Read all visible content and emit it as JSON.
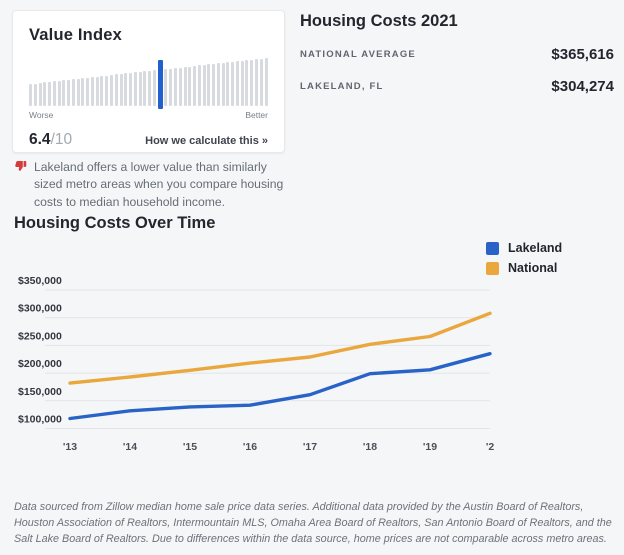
{
  "value_index_card": {
    "title": "Value Index",
    "score": "6.4",
    "score_max": "/10",
    "worse_label": "Worse",
    "better_label": "Better",
    "calculate_link": "How we calculate this »",
    "gauge": {
      "bar_count": 50,
      "highlight_index": 27,
      "bar_color": "#d7dade",
      "highlight_color": "#2260d0"
    }
  },
  "housing_costs": {
    "title": "Housing Costs 2021",
    "rows": [
      {
        "label": "NATIONAL AVERAGE",
        "value": "$365,616"
      },
      {
        "label": "LAKELAND, FL",
        "value": "$304,274"
      }
    ]
  },
  "note": {
    "icon": "thumbs-down-icon",
    "icon_color": "#d63b3b",
    "text": "Lakeland offers a lower value than similarly sized metro areas when you compare housing costs to median household income."
  },
  "chart_data": {
    "type": "line",
    "title": "Housing Costs Over Time",
    "x_tick_labels": [
      "'13",
      "'14",
      "'15",
      "'16",
      "'17",
      "'18",
      "'19",
      "'2"
    ],
    "years": [
      2013,
      2014,
      2015,
      2016,
      2017,
      2018,
      2019,
      2020
    ],
    "series": [
      {
        "name": "Lakeland",
        "color": "#2a63c8",
        "values": [
          118000,
          132000,
          139000,
          142000,
          161000,
          199000,
          206000,
          235000
        ]
      },
      {
        "name": "National",
        "color": "#eaa73d",
        "values": [
          182000,
          193000,
          205000,
          218000,
          229000,
          252000,
          266000,
          308000
        ]
      }
    ],
    "y_ticks": [
      {
        "label": "$350,000",
        "value": 350000
      },
      {
        "label": "$300,000",
        "value": 300000
      },
      {
        "label": "$250,000",
        "value": 250000
      },
      {
        "label": "$200,000",
        "value": 200000
      },
      {
        "label": "$150,000",
        "value": 150000
      },
      {
        "label": "$100,000",
        "value": 100000
      }
    ],
    "ylim": [
      100000,
      350000
    ],
    "xlabel": "",
    "ylabel": "",
    "grid": true,
    "legend_position": "top-right"
  },
  "footer": {
    "text": "Data sourced from Zillow median home sale price data series. Additional data provided by the Austin Board of Realtors, Houston Association of Realtors, Intermountain MLS, Omaha Area Board of Realtors, San Antonio Board of Realtors, and the Salt Lake Board of Realtors. Due to differences within the data source, home prices are not comparable across metro areas."
  }
}
